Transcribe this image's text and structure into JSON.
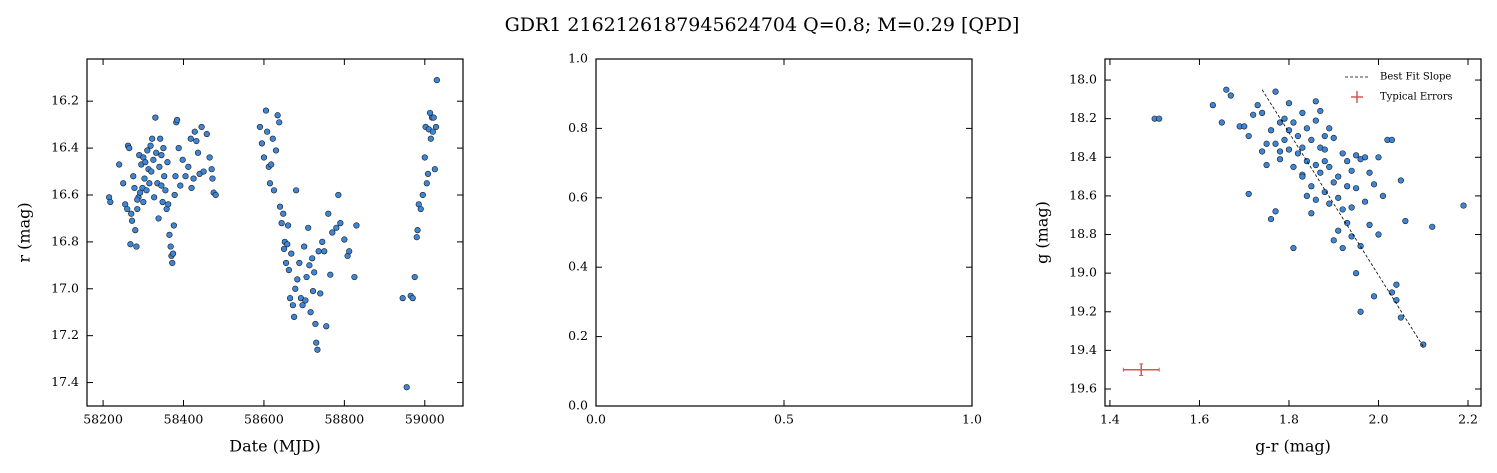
{
  "title": "GDR1 2162126187945624704  Q=0.8; M=0.29 [QPD]",
  "chart_data": [
    {
      "type": "scatter",
      "xlabel": "Date (MJD)",
      "ylabel": "r (mag)",
      "color": "#3d85d6",
      "edgecolor": "#1a1a1a",
      "xlim": [
        58160,
        59095
      ],
      "ylim": [
        16.02,
        17.5
      ],
      "yinvert": true,
      "xticks": [
        58200,
        58400,
        58600,
        58800,
        59000
      ],
      "yticks": [
        16.2,
        16.4,
        16.6,
        16.8,
        {
          "value": 17,
          "label": "17.0"
        },
        17.2,
        17.4
      ],
      "x": [
        58215,
        58218,
        58240,
        58250,
        58255,
        58260,
        58262,
        58265,
        58268,
        58270,
        58272,
        58275,
        58278,
        58280,
        58283,
        58285,
        58288,
        58290,
        58292,
        58295,
        58298,
        58300,
        58303,
        58305,
        58308,
        58310,
        58313,
        58315,
        58318,
        58320,
        58322,
        58325,
        58327,
        58330,
        58332,
        58335,
        58338,
        58340,
        58342,
        58345,
        58348,
        58350,
        58352,
        58355,
        58358,
        58360,
        58362,
        58365,
        58368,
        58370,
        58372,
        58374,
        58376,
        58378,
        58380,
        58382,
        58384,
        58388,
        58392,
        58398,
        58405,
        58412,
        58418,
        58420,
        58425,
        58428,
        58432,
        58436,
        58440,
        58445,
        58450,
        58458,
        58465,
        58470,
        58472,
        58475,
        58480,
        58300,
        58285,
        58345,
        58590,
        58595,
        58600,
        58605,
        58608,
        58612,
        58615,
        58618,
        58622,
        58625,
        58630,
        58634,
        58638,
        58640,
        58644,
        58648,
        58650,
        58652,
        58655,
        58658,
        58660,
        58662,
        58665,
        58668,
        58672,
        58675,
        58678,
        58680,
        58683,
        58688,
        58692,
        58696,
        58700,
        58703,
        58706,
        58710,
        58713,
        58716,
        58720,
        58722,
        58725,
        58728,
        58730,
        58733,
        58736,
        58740,
        58745,
        58750,
        58755,
        58760,
        58765,
        58770,
        58780,
        58785,
        58790,
        58800,
        58808,
        58812,
        58825,
        58830,
        58945,
        58955,
        58965,
        58970,
        58975,
        58980,
        58982,
        58985,
        58990,
        58995,
        59000,
        59002,
        59005,
        59008,
        59010,
        59013,
        59015,
        59018,
        59020,
        59022,
        59025,
        59028,
        59030
      ],
      "values": [
        16.61,
        16.63,
        16.47,
        16.55,
        16.64,
        16.66,
        16.39,
        16.4,
        16.81,
        16.68,
        16.71,
        16.52,
        16.57,
        16.75,
        16.82,
        16.66,
        16.61,
        16.43,
        16.59,
        16.47,
        16.57,
        16.44,
        16.53,
        16.46,
        16.58,
        16.41,
        16.49,
        16.55,
        16.39,
        16.5,
        16.36,
        16.45,
        16.61,
        16.27,
        16.42,
        16.55,
        16.7,
        16.48,
        16.36,
        16.56,
        16.63,
        16.4,
        16.52,
        16.58,
        16.66,
        16.46,
        16.64,
        16.77,
        16.82,
        16.86,
        16.89,
        16.85,
        16.73,
        16.6,
        16.52,
        16.29,
        16.28,
        16.4,
        16.56,
        16.45,
        16.52,
        16.48,
        16.36,
        16.57,
        16.53,
        16.33,
        16.37,
        16.42,
        16.51,
        16.31,
        16.5,
        16.34,
        16.44,
        16.49,
        16.53,
        16.59,
        16.6,
        16.63,
        16.62,
        16.43,
        16.31,
        16.38,
        16.44,
        16.24,
        16.33,
        16.48,
        16.55,
        16.47,
        16.36,
        16.58,
        16.41,
        16.26,
        16.29,
        16.65,
        16.72,
        16.68,
        16.83,
        16.8,
        16.89,
        16.81,
        16.73,
        16.92,
        17.04,
        16.85,
        17.07,
        17.12,
        17.0,
        16.58,
        16.96,
        16.89,
        17.04,
        17.07,
        16.82,
        17.05,
        16.95,
        16.74,
        16.9,
        17.1,
        16.87,
        17.01,
        16.93,
        17.15,
        17.23,
        17.26,
        16.84,
        17.02,
        16.8,
        16.84,
        17.16,
        16.68,
        16.94,
        16.76,
        16.74,
        16.6,
        16.72,
        16.79,
        16.86,
        16.84,
        16.95,
        16.73,
        17.04,
        17.42,
        17.03,
        17.04,
        16.95,
        16.78,
        16.75,
        16.64,
        16.66,
        16.6,
        16.44,
        16.31,
        16.55,
        16.51,
        16.32,
        16.25,
        16.36,
        16.27,
        16.33,
        16.27,
        16.49,
        16.31,
        16.11
      ]
    },
    {
      "type": "empty",
      "xlim": [
        0,
        1
      ],
      "ylim": [
        0,
        1
      ],
      "xticks": [
        {
          "value": 0,
          "label": "0.0"
        },
        0.5,
        {
          "value": 1,
          "label": "1.0"
        }
      ],
      "yticks": [
        {
          "value": 0,
          "label": "0.0"
        },
        0.2,
        0.4,
        0.6,
        0.8,
        {
          "value": 1,
          "label": "1.0"
        }
      ]
    },
    {
      "type": "scatter",
      "xlabel": "g-r (mag)",
      "ylabel": "g (mag)",
      "color": "#3d85d6",
      "edgecolor": "#1a1a1a",
      "xlim": [
        1.389,
        2.229
      ],
      "ylim": [
        17.891,
        19.688
      ],
      "yinvert": true,
      "xticks": [
        1.4,
        1.6,
        1.8,
        {
          "value": 2,
          "label": "2.0"
        },
        2.2
      ],
      "yticks": [
        {
          "value": 18,
          "label": "18.0"
        },
        18.2,
        18.4,
        18.6,
        18.8,
        {
          "value": 19,
          "label": "19.0"
        },
        19.2,
        19.4,
        19.6
      ],
      "x": [
        1.5,
        1.51,
        1.63,
        1.65,
        1.66,
        1.67,
        1.69,
        1.7,
        1.71,
        1.71,
        1.72,
        1.73,
        1.74,
        1.75,
        1.75,
        1.76,
        1.76,
        1.77,
        1.77,
        1.78,
        1.78,
        1.78,
        1.79,
        1.79,
        1.8,
        1.8,
        1.8,
        1.81,
        1.81,
        1.81,
        1.82,
        1.82,
        1.83,
        1.83,
        1.83,
        1.84,
        1.84,
        1.84,
        1.85,
        1.85,
        1.85,
        1.86,
        1.86,
        1.86,
        1.87,
        1.87,
        1.87,
        1.88,
        1.88,
        1.88,
        1.89,
        1.89,
        1.89,
        1.9,
        1.9,
        1.9,
        1.91,
        1.91,
        1.91,
        1.92,
        1.92,
        1.93,
        1.93,
        1.93,
        1.94,
        1.94,
        1.94,
        1.95,
        1.95,
        1.95,
        1.96,
        1.96,
        1.96,
        1.97,
        1.97,
        1.98,
        1.98,
        1.99,
        1.99,
        2.0,
        2.0,
        2.01,
        2.02,
        2.03,
        2.03,
        2.04,
        2.04,
        2.05,
        2.05,
        2.06,
        2.1,
        2.12,
        2.19,
        1.92,
        1.88,
        1.83,
        1.86,
        1.77,
        1.74
      ],
      "values": [
        18.2,
        18.2,
        18.13,
        18.22,
        18.05,
        18.08,
        18.24,
        18.24,
        18.29,
        18.59,
        18.18,
        18.13,
        18.17,
        18.44,
        18.33,
        18.26,
        18.72,
        18.68,
        18.06,
        18.22,
        18.41,
        18.37,
        18.2,
        18.31,
        18.12,
        18.36,
        18.26,
        18.45,
        18.87,
        18.22,
        18.38,
        18.29,
        18.35,
        18.17,
        18.49,
        18.42,
        18.25,
        18.6,
        18.31,
        18.55,
        18.69,
        18.44,
        18.21,
        18.11,
        18.35,
        18.48,
        18.16,
        18.36,
        18.58,
        18.42,
        18.25,
        18.64,
        18.45,
        18.3,
        18.53,
        18.83,
        18.5,
        18.61,
        18.78,
        18.38,
        18.67,
        18.42,
        18.55,
        18.74,
        18.47,
        18.81,
        18.66,
        18.39,
        18.56,
        19.0,
        18.41,
        18.86,
        19.2,
        18.4,
        18.63,
        18.48,
        18.75,
        18.54,
        19.12,
        18.4,
        18.8,
        18.6,
        18.31,
        18.31,
        19.1,
        19.06,
        19.14,
        18.52,
        19.23,
        18.73,
        19.37,
        18.76,
        18.65,
        18.87,
        18.29,
        18.5,
        18.62,
        18.33,
        18.37
      ],
      "fit": {
        "name": "Best Fit Slope",
        "x": [
          1.74,
          2.1
        ],
        "y": [
          18.05,
          19.38
        ],
        "color": "#000000"
      },
      "errors": {
        "name": "Typical Errors",
        "x": 1.47,
        "y": 19.5,
        "xerr": 0.04,
        "yerr": 0.03,
        "color": "#d05a50"
      },
      "legend": "upper right"
    }
  ]
}
